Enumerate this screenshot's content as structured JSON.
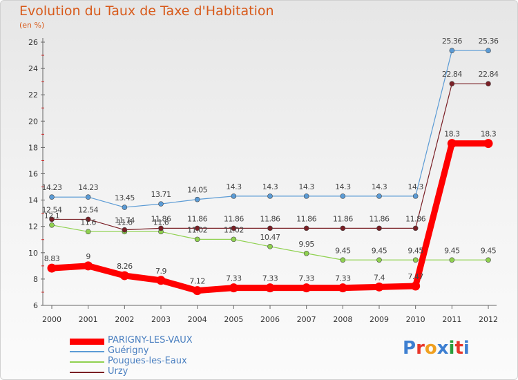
{
  "title": "Evolution du Taux de Taxe d'Habitation",
  "subtitle": "(en %)",
  "logo": {
    "text": "Proxiti",
    "colors": [
      "#3d7fd1",
      "#e8362a",
      "#f0a020",
      "#3d7fd1",
      "#2a9d3b",
      "#e8362a",
      "#3d7fd1"
    ]
  },
  "chart_data": {
    "type": "line",
    "title": "Evolution du Taux de Taxe d'Habitation",
    "ylabel": "(en %)",
    "xlabel": "",
    "x": [
      "2000",
      "2001",
      "2002",
      "2003",
      "2004",
      "2005",
      "2006",
      "2007",
      "2008",
      "2009",
      "2010",
      "2011",
      "2012"
    ],
    "ylim": [
      6,
      26
    ],
    "yticks": [
      "6",
      "8",
      "10",
      "12",
      "14",
      "16",
      "18",
      "20",
      "22",
      "24",
      "26"
    ],
    "grid": false,
    "legend_position": "bottom-left",
    "series": [
      {
        "name": "PARIGNY-LES-VAUX",
        "color": "#ff0000",
        "values": [
          8.83,
          9,
          8.26,
          7.9,
          7.12,
          7.33,
          7.33,
          7.33,
          7.33,
          7.4,
          7.47,
          18.3,
          18.3
        ],
        "labels": [
          "8.83",
          "9",
          "8.26",
          "7.9",
          "7.12",
          "7.33",
          "7.33",
          "7.33",
          "7.33",
          "7.4",
          "7.47",
          "18.3",
          "18.3"
        ]
      },
      {
        "name": "Guérigny",
        "color": "#5b9bd5",
        "values": [
          14.23,
          14.23,
          13.45,
          13.71,
          14.05,
          14.3,
          14.3,
          14.3,
          14.3,
          14.3,
          14.3,
          25.36,
          25.36
        ],
        "labels": [
          "14.23",
          "14.23",
          "13.45",
          "13.71",
          "14.05",
          "14.3",
          "14.3",
          "14.3",
          "14.3",
          "14.3",
          "14.3",
          "25.36",
          "25.36"
        ]
      },
      {
        "name": "Pougues-les-Eaux",
        "color": "#8fd14f",
        "values": [
          12.1,
          11.6,
          11.6,
          11.6,
          11.02,
          11.02,
          10.47,
          9.95,
          9.45,
          9.45,
          9.45,
          9.45,
          9.45
        ],
        "labels": [
          "12.1",
          "11.6",
          "11.6",
          "11.6",
          "11.02",
          "11.02",
          "10.47",
          "9.95",
          "9.45",
          "9.45",
          "9.45",
          "9.45",
          "9.45"
        ]
      },
      {
        "name": "Urzy",
        "color": "#7a1f25",
        "values": [
          12.54,
          12.54,
          11.74,
          11.86,
          11.86,
          11.86,
          11.86,
          11.86,
          11.86,
          11.86,
          11.86,
          22.84,
          22.84
        ],
        "labels": [
          "12.54",
          "12.54",
          "11.74",
          "11.86",
          "11.86",
          "11.86",
          "11.86",
          "11.86",
          "11.86",
          "11.86",
          "11.86",
          "22.84",
          "22.84"
        ]
      }
    ]
  }
}
